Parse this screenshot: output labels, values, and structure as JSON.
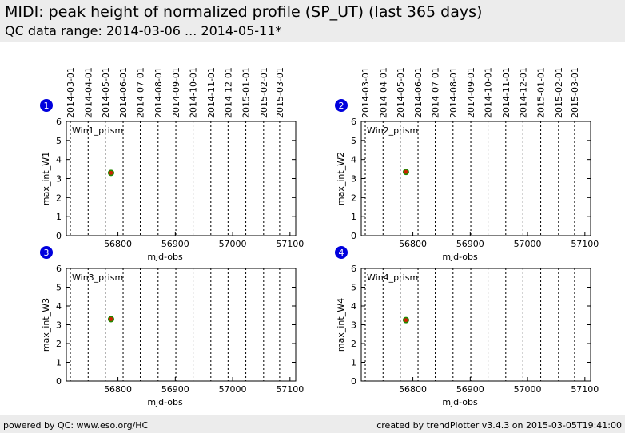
{
  "header": {
    "title": "MIDI: peak height of normalized profile (SP_UT) (last 365 days)",
    "subtitle": "QC data range: 2014-03-06 ... 2014-05-11*"
  },
  "footer": {
    "left": "powered by QC: www.eso.org/HC",
    "right": "created by trendPlotter v3.4.3 on 2015-03-05T19:41:00"
  },
  "colors": {
    "header_bg": "#ececec",
    "badge": "#0000dd",
    "point_fill": "#cc2200",
    "point_edge": "#228800"
  },
  "chart_data": [
    {
      "type": "scatter",
      "badge": "1",
      "panel_label": "Win1_prism",
      "xlabel": "mjd-obs",
      "ylabel": "max_int_W1",
      "xlim": [
        56710,
        57110
      ],
      "ylim": [
        0,
        6
      ],
      "xticks": [
        56800,
        56900,
        57000,
        57100
      ],
      "yticks": [
        0,
        1,
        2,
        3,
        4,
        5,
        6
      ],
      "date_ticks": [
        "2014-03-01",
        "2014-04-01",
        "2014-05-01",
        "2014-06-01",
        "2014-07-01",
        "2014-08-01",
        "2014-09-01",
        "2014-10-01",
        "2014-11-01",
        "2014-12-01",
        "2015-01-01",
        "2015-02-01",
        "2015-03-01"
      ],
      "date_tick_mjd": [
        56717,
        56748,
        56778,
        56809,
        56839,
        56870,
        56901,
        56931,
        56962,
        56992,
        57023,
        57054,
        57082
      ],
      "points": [
        {
          "x": 56788,
          "y": 3.3
        }
      ]
    },
    {
      "type": "scatter",
      "badge": "2",
      "panel_label": "Win2_prism",
      "xlabel": "mjd-obs",
      "ylabel": "max_int_W2",
      "xlim": [
        56710,
        57110
      ],
      "ylim": [
        0,
        6
      ],
      "xticks": [
        56800,
        56900,
        57000,
        57100
      ],
      "yticks": [
        0,
        1,
        2,
        3,
        4,
        5,
        6
      ],
      "date_ticks": [
        "2014-03-01",
        "2014-04-01",
        "2014-05-01",
        "2014-06-01",
        "2014-07-01",
        "2014-08-01",
        "2014-09-01",
        "2014-10-01",
        "2014-11-01",
        "2014-12-01",
        "2015-01-01",
        "2015-02-01",
        "2015-03-01"
      ],
      "date_tick_mjd": [
        56717,
        56748,
        56778,
        56809,
        56839,
        56870,
        56901,
        56931,
        56962,
        56992,
        57023,
        57054,
        57082
      ],
      "points": [
        {
          "x": 56788,
          "y": 3.35
        }
      ]
    },
    {
      "type": "scatter",
      "badge": "3",
      "panel_label": "Win3_prism",
      "xlabel": "mjd-obs",
      "ylabel": "max_int_W3",
      "xlim": [
        56710,
        57110
      ],
      "ylim": [
        0,
        6
      ],
      "xticks": [
        56800,
        56900,
        57000,
        57100
      ],
      "yticks": [
        0,
        1,
        2,
        3,
        4,
        5,
        6
      ],
      "date_ticks": [],
      "date_tick_mjd": [
        56717,
        56748,
        56778,
        56809,
        56839,
        56870,
        56901,
        56931,
        56962,
        56992,
        57023,
        57054,
        57082
      ],
      "points": [
        {
          "x": 56788,
          "y": 3.3
        }
      ]
    },
    {
      "type": "scatter",
      "badge": "4",
      "panel_label": "Win4_prism",
      "xlabel": "mjd-obs",
      "ylabel": "max_int_W4",
      "xlim": [
        56710,
        57110
      ],
      "ylim": [
        0,
        6
      ],
      "xticks": [
        56800,
        56900,
        57000,
        57100
      ],
      "yticks": [
        0,
        1,
        2,
        3,
        4,
        5,
        6
      ],
      "date_ticks": [],
      "date_tick_mjd": [
        56717,
        56748,
        56778,
        56809,
        56839,
        56870,
        56901,
        56931,
        56962,
        56992,
        57023,
        57054,
        57082
      ],
      "points": [
        {
          "x": 56788,
          "y": 3.25
        }
      ]
    }
  ]
}
